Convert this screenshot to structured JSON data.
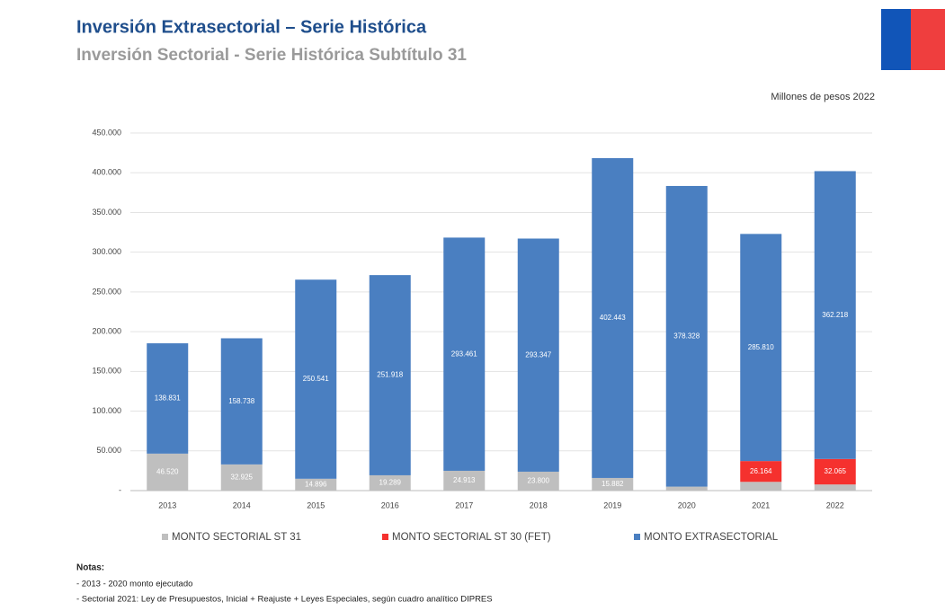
{
  "chart_data": {
    "type": "stacked_bar",
    "title": "Inversión Extrasectorial – Serie Histórica",
    "subtitle": "Inversión Sectorial - Serie Histórica Subtítulo 31",
    "unit_label": "Millones de pesos 2022",
    "categories": [
      "2013",
      "2014",
      "2015",
      "2016",
      "2017",
      "2018",
      "2019",
      "2020",
      "2021",
      "2022"
    ],
    "series": [
      {
        "name": "MONTO SECTORIAL ST 31",
        "color": "#bfbfbf",
        "values": [
          46520,
          32925,
          14896,
          19289,
          24913,
          23800,
          15882,
          5000,
          11000,
          7700
        ],
        "value_labels": [
          "46.520",
          "32.925",
          "14.896",
          "19.289",
          "24.913",
          "23.800",
          "15.882",
          null,
          null,
          null
        ]
      },
      {
        "name": "MONTO SECTORIAL ST 30 (FET)",
        "color": "#f5312e",
        "values": [
          null,
          null,
          null,
          null,
          null,
          null,
          null,
          null,
          26164,
          32065
        ],
        "value_labels": [
          null,
          null,
          null,
          null,
          null,
          null,
          null,
          null,
          "26.164",
          "32.065"
        ]
      },
      {
        "name": "MONTO EXTRASECTORIAL",
        "color": "#4a7fc1",
        "values": [
          138831,
          158738,
          250541,
          251918,
          293461,
          293347,
          402443,
          378328,
          285810,
          362218
        ],
        "value_labels": [
          "138.831",
          "158.738",
          "250.541",
          "251.918",
          "293.461",
          "293.347",
          "402.443",
          "378.328",
          "285.810",
          "362.218"
        ]
      }
    ],
    "ylim": [
      0,
      450000
    ],
    "yticks": [
      {
        "value": 0,
        "label": "-"
      },
      {
        "value": 50000,
        "label": "50.000"
      },
      {
        "value": 100000,
        "label": "100.000"
      },
      {
        "value": 150000,
        "label": "150.000"
      },
      {
        "value": 200000,
        "label": "200.000"
      },
      {
        "value": 250000,
        "label": "250.000"
      },
      {
        "value": 300000,
        "label": "300.000"
      },
      {
        "value": 350000,
        "label": "350.000"
      },
      {
        "value": 400000,
        "label": "400.000"
      },
      {
        "value": 450000,
        "label": "450.000"
      }
    ],
    "grid": true,
    "legend": "bottom"
  },
  "notes": {
    "heading": "Notas:",
    "lines": [
      "- 2013 - 2020 monto ejecutado",
      "- Sectorial 2021: Ley de Presupuestos, Inicial + Reajuste + Leyes Especiales, según cuadro analítico DIPRES"
    ]
  }
}
